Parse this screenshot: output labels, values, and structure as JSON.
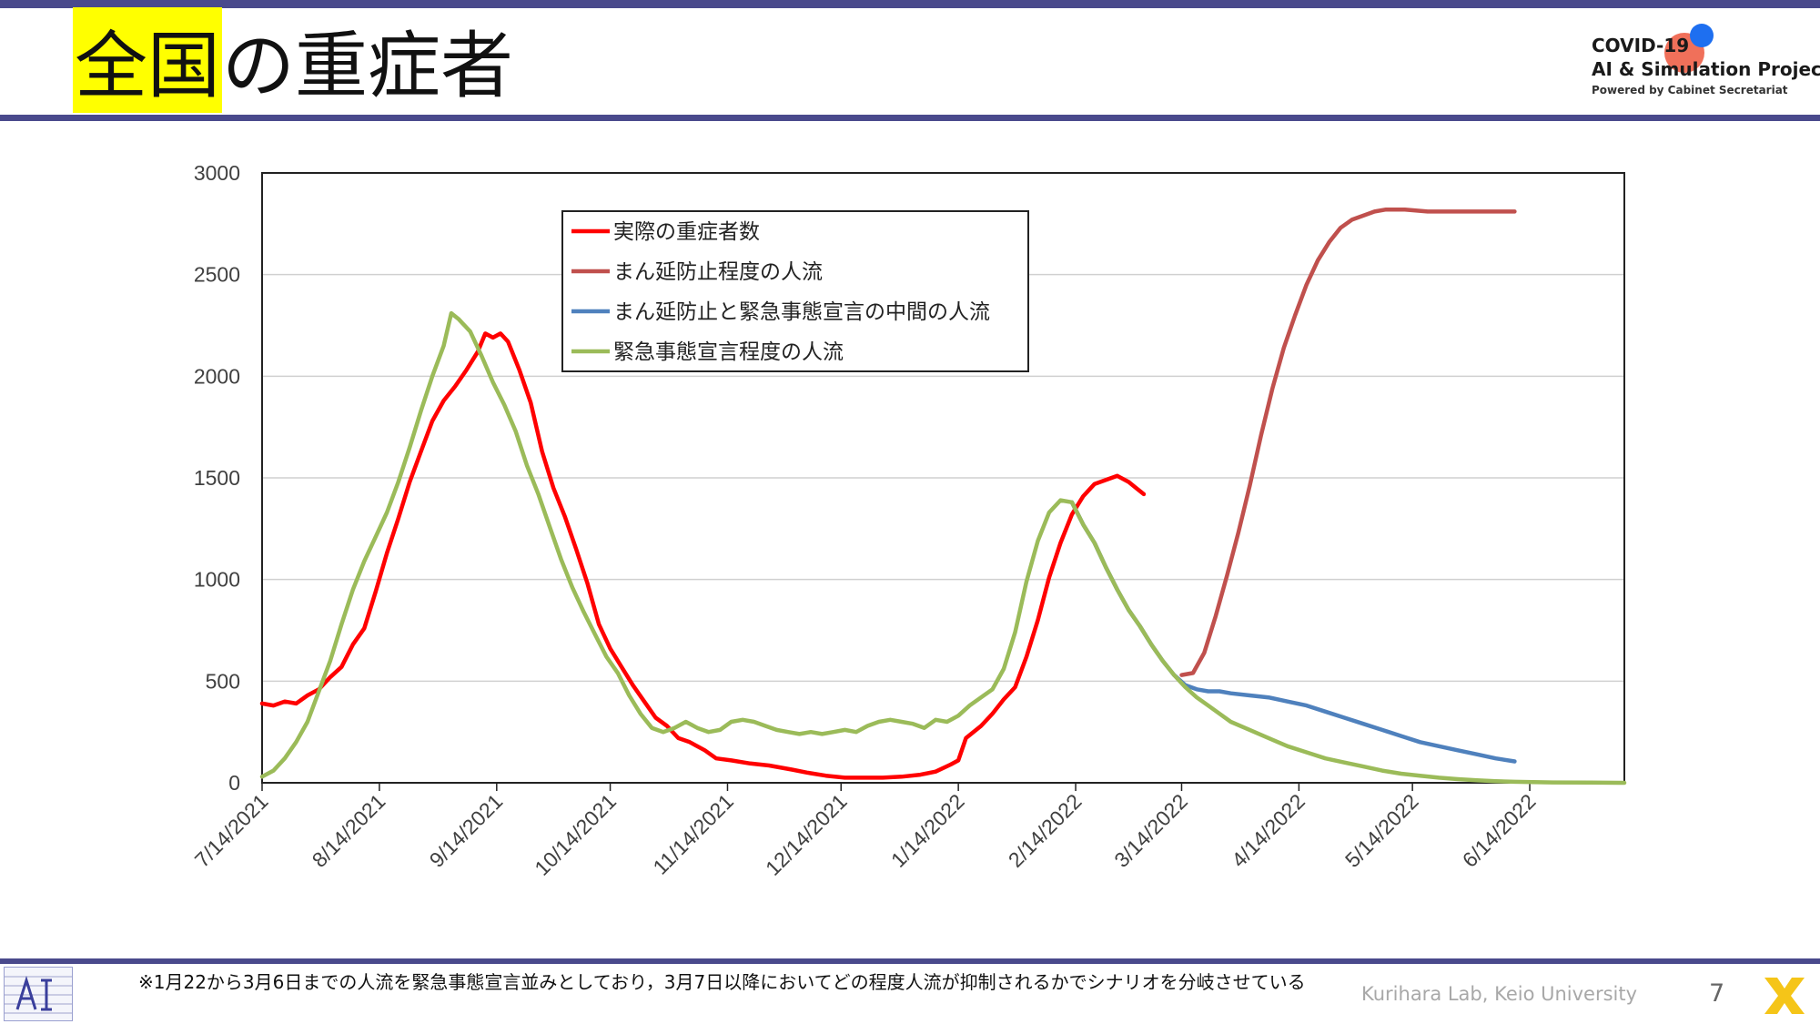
{
  "slide": {
    "title_highlight": "全国",
    "title_rest": "の重症者",
    "logo": {
      "line1": "COVID-19",
      "line2": "AI & Simulation Project",
      "line3": "Powered by Cabinet Secretariat"
    },
    "footnote": "※1月22から3月6日までの人流を緊急事態宣言並みとしており，3月7日以降においてどの程度人流が抑制されるかでシナリオを分岐させている",
    "credit": "Kurihara Lab, Keio University",
    "page_number": "7"
  },
  "colors": {
    "rule": "#4a4a8c",
    "highlight": "#ffff00",
    "actual": "#ff0000",
    "mambo": "#c0504d",
    "intermediate": "#4f81bd",
    "emergency": "#9bbb59"
  },
  "chart_data": {
    "type": "line",
    "title": "",
    "xlabel": "",
    "ylabel": "",
    "ylim": [
      0,
      3000
    ],
    "yticks": [
      0,
      500,
      1000,
      1500,
      2000,
      2500,
      3000
    ],
    "xlim": [
      "2021-07-14",
      "2022-07-09"
    ],
    "xtick_labels": [
      "7/14/2021",
      "8/14/2021",
      "9/14/2021",
      "10/14/2021",
      "11/14/2021",
      "12/14/2021",
      "1/14/2022",
      "2/14/2022",
      "3/14/2022",
      "4/14/2022",
      "5/14/2022",
      "6/14/2022"
    ],
    "xtick_dates": [
      "2021-07-14",
      "2021-08-14",
      "2021-09-14",
      "2021-10-14",
      "2021-11-14",
      "2021-12-14",
      "2022-01-14",
      "2022-02-14",
      "2022-03-14",
      "2022-04-14",
      "2022-05-14",
      "2022-06-14"
    ],
    "grid": "horizontal",
    "legend_position": "top-center",
    "series": [
      {
        "name": "実際の重症者数",
        "color": "#ff0000",
        "points": [
          [
            "2021-07-14",
            390
          ],
          [
            "2021-07-17",
            380
          ],
          [
            "2021-07-20",
            400
          ],
          [
            "2021-07-23",
            390
          ],
          [
            "2021-07-26",
            430
          ],
          [
            "2021-07-29",
            460
          ],
          [
            "2021-08-01",
            520
          ],
          [
            "2021-08-04",
            570
          ],
          [
            "2021-08-07",
            680
          ],
          [
            "2021-08-10",
            760
          ],
          [
            "2021-08-13",
            940
          ],
          [
            "2021-08-16",
            1130
          ],
          [
            "2021-08-19",
            1300
          ],
          [
            "2021-08-22",
            1480
          ],
          [
            "2021-08-25",
            1630
          ],
          [
            "2021-08-28",
            1780
          ],
          [
            "2021-08-31",
            1880
          ],
          [
            "2021-09-03",
            1950
          ],
          [
            "2021-09-06",
            2030
          ],
          [
            "2021-09-09",
            2120
          ],
          [
            "2021-09-11",
            2210
          ],
          [
            "2021-09-13",
            2190
          ],
          [
            "2021-09-15",
            2210
          ],
          [
            "2021-09-17",
            2170
          ],
          [
            "2021-09-20",
            2030
          ],
          [
            "2021-09-23",
            1870
          ],
          [
            "2021-09-26",
            1630
          ],
          [
            "2021-09-29",
            1450
          ],
          [
            "2021-10-02",
            1310
          ],
          [
            "2021-10-05",
            1150
          ],
          [
            "2021-10-08",
            980
          ],
          [
            "2021-10-11",
            780
          ],
          [
            "2021-10-14",
            660
          ],
          [
            "2021-10-17",
            570
          ],
          [
            "2021-10-20",
            480
          ],
          [
            "2021-10-23",
            400
          ],
          [
            "2021-10-26",
            320
          ],
          [
            "2021-10-29",
            280
          ],
          [
            "2021-11-01",
            220
          ],
          [
            "2021-11-04",
            200
          ],
          [
            "2021-11-08",
            160
          ],
          [
            "2021-11-11",
            120
          ],
          [
            "2021-11-15",
            110
          ],
          [
            "2021-11-20",
            95
          ],
          [
            "2021-11-25",
            85
          ],
          [
            "2021-12-01",
            65
          ],
          [
            "2021-12-05",
            50
          ],
          [
            "2021-12-10",
            35
          ],
          [
            "2021-12-15",
            25
          ],
          [
            "2021-12-20",
            25
          ],
          [
            "2021-12-25",
            25
          ],
          [
            "2021-12-30",
            30
          ],
          [
            "2022-01-04",
            40
          ],
          [
            "2022-01-08",
            55
          ],
          [
            "2022-01-12",
            90
          ],
          [
            "2022-01-14",
            110
          ],
          [
            "2022-01-16",
            220
          ],
          [
            "2022-01-20",
            280
          ],
          [
            "2022-01-23",
            340
          ],
          [
            "2022-01-26",
            410
          ],
          [
            "2022-01-29",
            470
          ],
          [
            "2022-02-01",
            620
          ],
          [
            "2022-02-04",
            800
          ],
          [
            "2022-02-07",
            1010
          ],
          [
            "2022-02-10",
            1180
          ],
          [
            "2022-02-13",
            1320
          ],
          [
            "2022-02-16",
            1410
          ],
          [
            "2022-02-19",
            1470
          ],
          [
            "2022-02-22",
            1490
          ],
          [
            "2022-02-25",
            1510
          ],
          [
            "2022-02-28",
            1480
          ],
          [
            "2022-03-02",
            1450
          ],
          [
            "2022-03-04",
            1420
          ]
        ]
      },
      {
        "name": "まん延防止程度の人流",
        "color": "#c0504d",
        "points": [
          [
            "2022-03-14",
            530
          ],
          [
            "2022-03-17",
            540
          ],
          [
            "2022-03-20",
            640
          ],
          [
            "2022-03-23",
            820
          ],
          [
            "2022-03-26",
            1020
          ],
          [
            "2022-03-29",
            1230
          ],
          [
            "2022-04-01",
            1460
          ],
          [
            "2022-04-04",
            1710
          ],
          [
            "2022-04-07",
            1940
          ],
          [
            "2022-04-10",
            2140
          ],
          [
            "2022-04-13",
            2300
          ],
          [
            "2022-04-16",
            2450
          ],
          [
            "2022-04-19",
            2570
          ],
          [
            "2022-04-22",
            2660
          ],
          [
            "2022-04-25",
            2730
          ],
          [
            "2022-04-28",
            2770
          ],
          [
            "2022-05-01",
            2790
          ],
          [
            "2022-05-04",
            2810
          ],
          [
            "2022-05-07",
            2820
          ],
          [
            "2022-05-12",
            2820
          ],
          [
            "2022-05-18",
            2810
          ],
          [
            "2022-05-24",
            2810
          ],
          [
            "2022-05-30",
            2810
          ],
          [
            "2022-06-05",
            2810
          ],
          [
            "2022-06-10",
            2810
          ]
        ]
      },
      {
        "name": "まん延防止と緊急事態宣言の中間の人流",
        "color": "#4f81bd",
        "points": [
          [
            "2022-02-13",
            1380
          ],
          [
            "2022-02-16",
            1270
          ],
          [
            "2022-02-19",
            1180
          ],
          [
            "2022-02-22",
            1060
          ],
          [
            "2022-02-25",
            950
          ],
          [
            "2022-02-28",
            850
          ],
          [
            "2022-03-03",
            770
          ],
          [
            "2022-03-06",
            680
          ],
          [
            "2022-03-09",
            600
          ],
          [
            "2022-03-12",
            530
          ],
          [
            "2022-03-15",
            480
          ],
          [
            "2022-03-18",
            460
          ],
          [
            "2022-03-21",
            450
          ],
          [
            "2022-03-24",
            450
          ],
          [
            "2022-03-27",
            440
          ],
          [
            "2022-04-01",
            430
          ],
          [
            "2022-04-06",
            420
          ],
          [
            "2022-04-11",
            400
          ],
          [
            "2022-04-16",
            380
          ],
          [
            "2022-04-21",
            350
          ],
          [
            "2022-04-26",
            320
          ],
          [
            "2022-05-01",
            290
          ],
          [
            "2022-05-06",
            260
          ],
          [
            "2022-05-11",
            230
          ],
          [
            "2022-05-16",
            200
          ],
          [
            "2022-05-21",
            180
          ],
          [
            "2022-05-26",
            160
          ],
          [
            "2022-05-31",
            140
          ],
          [
            "2022-06-05",
            120
          ],
          [
            "2022-06-10",
            105
          ]
        ]
      },
      {
        "name": "緊急事態宣言程度の人流",
        "color": "#9bbb59",
        "points": [
          [
            "2021-07-14",
            30
          ],
          [
            "2021-07-17",
            60
          ],
          [
            "2021-07-20",
            120
          ],
          [
            "2021-07-23",
            200
          ],
          [
            "2021-07-26",
            300
          ],
          [
            "2021-07-29",
            450
          ],
          [
            "2021-08-01",
            600
          ],
          [
            "2021-08-04",
            780
          ],
          [
            "2021-08-07",
            950
          ],
          [
            "2021-08-10",
            1090
          ],
          [
            "2021-08-13",
            1210
          ],
          [
            "2021-08-16",
            1330
          ],
          [
            "2021-08-19",
            1480
          ],
          [
            "2021-08-22",
            1650
          ],
          [
            "2021-08-25",
            1830
          ],
          [
            "2021-08-28",
            2000
          ],
          [
            "2021-08-31",
            2150
          ],
          [
            "2021-09-02",
            2310
          ],
          [
            "2021-09-04",
            2280
          ],
          [
            "2021-09-07",
            2220
          ],
          [
            "2021-09-10",
            2100
          ],
          [
            "2021-09-13",
            1970
          ],
          [
            "2021-09-16",
            1860
          ],
          [
            "2021-09-19",
            1730
          ],
          [
            "2021-09-22",
            1560
          ],
          [
            "2021-09-25",
            1420
          ],
          [
            "2021-09-28",
            1260
          ],
          [
            "2021-10-01",
            1100
          ],
          [
            "2021-10-04",
            960
          ],
          [
            "2021-10-07",
            840
          ],
          [
            "2021-10-10",
            730
          ],
          [
            "2021-10-13",
            620
          ],
          [
            "2021-10-16",
            540
          ],
          [
            "2021-10-19",
            430
          ],
          [
            "2021-10-22",
            340
          ],
          [
            "2021-10-25",
            270
          ],
          [
            "2021-10-28",
            250
          ],
          [
            "2021-10-31",
            270
          ],
          [
            "2021-11-03",
            300
          ],
          [
            "2021-11-06",
            270
          ],
          [
            "2021-11-09",
            250
          ],
          [
            "2021-11-12",
            260
          ],
          [
            "2021-11-15",
            300
          ],
          [
            "2021-11-18",
            310
          ],
          [
            "2021-11-21",
            300
          ],
          [
            "2021-11-24",
            280
          ],
          [
            "2021-11-27",
            260
          ],
          [
            "2021-11-30",
            250
          ],
          [
            "2021-12-03",
            240
          ],
          [
            "2021-12-06",
            250
          ],
          [
            "2021-12-09",
            240
          ],
          [
            "2021-12-12",
            250
          ],
          [
            "2021-12-15",
            260
          ],
          [
            "2021-12-18",
            250
          ],
          [
            "2021-12-21",
            280
          ],
          [
            "2021-12-24",
            300
          ],
          [
            "2021-12-27",
            310
          ],
          [
            "2021-12-30",
            300
          ],
          [
            "2022-01-02",
            290
          ],
          [
            "2022-01-05",
            270
          ],
          [
            "2022-01-08",
            310
          ],
          [
            "2022-01-11",
            300
          ],
          [
            "2022-01-14",
            330
          ],
          [
            "2022-01-17",
            380
          ],
          [
            "2022-01-20",
            420
          ],
          [
            "2022-01-23",
            460
          ],
          [
            "2022-01-26",
            560
          ],
          [
            "2022-01-29",
            740
          ],
          [
            "2022-02-01",
            990
          ],
          [
            "2022-02-04",
            1190
          ],
          [
            "2022-02-07",
            1330
          ],
          [
            "2022-02-10",
            1390
          ],
          [
            "2022-02-13",
            1380
          ],
          [
            "2022-02-16",
            1270
          ],
          [
            "2022-02-19",
            1180
          ],
          [
            "2022-02-22",
            1060
          ],
          [
            "2022-02-25",
            950
          ],
          [
            "2022-02-28",
            850
          ],
          [
            "2022-03-03",
            770
          ],
          [
            "2022-03-06",
            680
          ],
          [
            "2022-03-09",
            600
          ],
          [
            "2022-03-12",
            530
          ],
          [
            "2022-03-15",
            470
          ],
          [
            "2022-03-18",
            420
          ],
          [
            "2022-03-21",
            380
          ],
          [
            "2022-03-24",
            340
          ],
          [
            "2022-03-27",
            300
          ],
          [
            "2022-04-01",
            260
          ],
          [
            "2022-04-06",
            220
          ],
          [
            "2022-04-11",
            180
          ],
          [
            "2022-04-16",
            150
          ],
          [
            "2022-04-21",
            120
          ],
          [
            "2022-04-26",
            100
          ],
          [
            "2022-05-01",
            80
          ],
          [
            "2022-05-06",
            60
          ],
          [
            "2022-05-11",
            45
          ],
          [
            "2022-05-16",
            35
          ],
          [
            "2022-05-21",
            25
          ],
          [
            "2022-05-26",
            18
          ],
          [
            "2022-05-31",
            12
          ],
          [
            "2022-06-05",
            8
          ],
          [
            "2022-06-10",
            5
          ],
          [
            "2022-06-15",
            3
          ],
          [
            "2022-06-20",
            2
          ],
          [
            "2022-06-30",
            1
          ],
          [
            "2022-07-09",
            0
          ]
        ]
      }
    ]
  }
}
